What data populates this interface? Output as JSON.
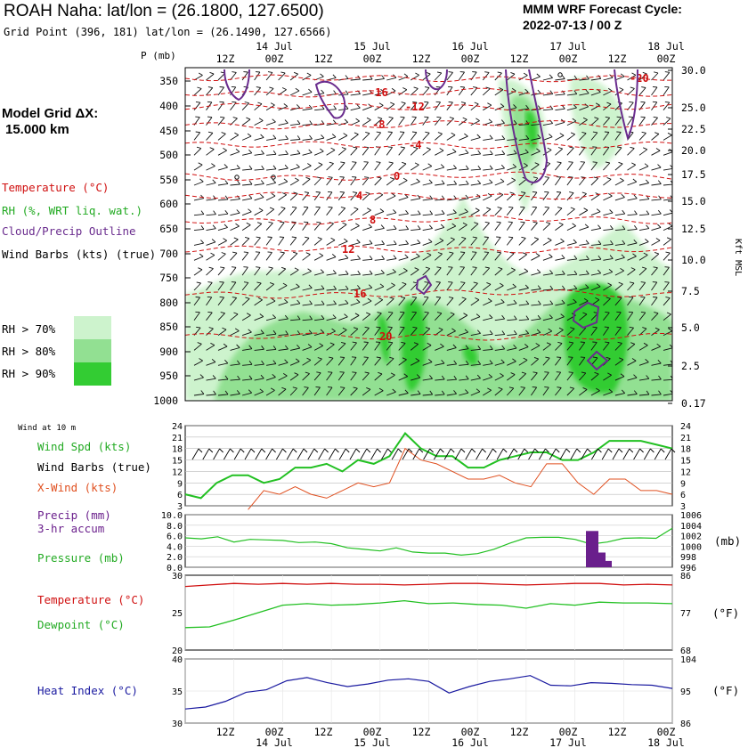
{
  "header": {
    "station_title": "ROAH Naha:  lat/lon = (26.1800, 127.6500)",
    "grid_point": "Grid Point (396, 181) lat/lon = (26.1490, 127.6566)",
    "cycle_line1": "MMM WRF Forecast Cycle:",
    "cycle_line2": "2022-07-13 / 00  Z",
    "model_grid_line1": "Model Grid ΔX:",
    "model_grid_line2": "15.000 km"
  },
  "legend": {
    "temperature": "Temperature (°C)",
    "rh": "RH (%, WRT liq. wat.)",
    "cloud": "Cloud/Precip Outline",
    "wind": "Wind Barbs (kts) (true)",
    "rh70": "RH > 70%",
    "rh80": "RH > 80%",
    "rh90": "RH > 90%"
  },
  "colors": {
    "temperature": "#d01010",
    "rh": "#22c022",
    "cloud": "#6a2c8e",
    "rh70": "#cdf3cd",
    "rh80": "#92e092",
    "rh90": "#33cc33",
    "xwind": "#e05020",
    "precip": "#6a1f8c",
    "heat": "#1a1aa0"
  },
  "time_axis": {
    "ticks": [
      "12Z",
      "00Z",
      "12Z",
      "00Z",
      "12Z",
      "00Z",
      "12Z",
      "00Z",
      "12Z",
      "00Z"
    ],
    "dates": [
      "14 Jul",
      "15 Jul",
      "16 Jul",
      "17 Jul",
      "18 Jul"
    ]
  },
  "sections": {
    "wind10": "Wind at 10 m",
    "wind_spd": "Wind Spd (kts)",
    "wind_barbs": "Wind Barbs (true)",
    "xwind": "X-Wind (kts)",
    "precip1": "Precip (mm)",
    "precip2": "3-hr accum",
    "pressure": "Pressure (mb)",
    "mb": "(mb)",
    "temp": "Temperature (°C)",
    "dew": "Dewpoint (°C)",
    "degF": "(°F)",
    "heat": "Heat Index (°C)",
    "degF2": "(°F)"
  },
  "chart_data": [
    {
      "type": "heatmap",
      "subtype": "time-height cross section",
      "left_axis_label": "P (mb)",
      "right_axis_label": "Kft MSL",
      "pressure_ticks": [
        "350",
        "400",
        "450",
        "500",
        "550",
        "600",
        "650",
        "700",
        "750",
        "800",
        "850",
        "900",
        "950",
        "1000"
      ],
      "height_ticks": [
        "30.0",
        "25.0",
        "22.5",
        "20.0",
        "17.5",
        "15.0",
        "12.5",
        "10.0",
        "7.5",
        "5.0",
        "2.5",
        "0.17"
      ],
      "temperature_contour_labels": [
        "-20",
        "-16",
        "-12",
        "-8",
        "-4",
        "0",
        "4",
        "8",
        "12",
        "16",
        "20"
      ],
      "x": [
        "07-13 06Z",
        "07-13 12Z",
        "07-13 18Z",
        "07-14 00Z",
        "07-14 06Z",
        "07-14 12Z",
        "07-14 18Z",
        "07-15 00Z",
        "07-15 06Z",
        "07-15 12Z",
        "07-15 18Z",
        "07-16 00Z",
        "07-16 06Z",
        "07-16 12Z",
        "07-16 18Z",
        "07-17 00Z",
        "07-17 06Z",
        "07-17 12Z",
        "07-17 18Z",
        "07-18 00Z"
      ],
      "series": [
        {
          "name": "Temperature",
          "unit": "°C"
        },
        {
          "name": "RH",
          "unit": "%",
          "levels": [
            70,
            80,
            90
          ]
        },
        {
          "name": "Cloud/Precip Outline"
        },
        {
          "name": "Wind Barbs",
          "unit": "kts"
        }
      ]
    },
    {
      "type": "line",
      "title": "Wind at 10 m",
      "ylim": [
        3,
        24
      ],
      "yticks": [
        "24",
        "21",
        "18",
        "15",
        "12",
        "9",
        "6",
        "3"
      ],
      "series": [
        {
          "name": "Wind Spd (kts)",
          "color": "#22c022",
          "values": [
            6,
            5,
            9,
            11,
            11,
            9,
            10,
            13,
            13,
            14,
            12,
            15,
            14,
            16,
            22,
            18,
            16,
            16,
            13,
            13,
            15,
            16,
            17,
            17,
            15,
            15,
            17,
            20,
            20,
            20,
            19,
            18
          ]
        },
        {
          "name": "X-Wind (kts)",
          "color": "#e05020",
          "values": [
            null,
            null,
            null,
            null,
            2,
            7,
            6,
            8,
            6,
            5,
            7,
            9,
            8,
            9,
            18,
            15,
            14,
            12,
            10,
            10,
            11,
            9,
            8,
            14,
            14,
            9,
            6,
            10,
            10,
            7,
            7,
            6
          ]
        }
      ]
    },
    {
      "type": "line",
      "title": "Pressure (mb)",
      "left_ticks": [
        "10.0",
        "8.0",
        "6.0",
        "4.0",
        "2.0",
        "0.0"
      ],
      "right_ticks": [
        "1006",
        "1004",
        "1002",
        "1000",
        "998",
        "996"
      ],
      "series": [
        {
          "name": "Pressure (mb)",
          "color": "#22c022",
          "values": [
            1001.6,
            1001.4,
            1001.8,
            1000.8,
            1001.3,
            1001.2,
            1001.1,
            1000.7,
            1000.8,
            1000.5,
            999.7,
            999.4,
            999.1,
            999.7,
            998.9,
            998.7,
            998.7,
            998.3,
            998.6,
            999.4,
            1000.6,
            1001.6,
            1001.7,
            1001.7,
            1001.3,
            1000.4,
            1000.8,
            1001.5,
            1001.6,
            1001.5,
            1003.4
          ]
        }
      ],
      "bars": {
        "name": "Precip (mm) 3-hr accum",
        "color": "#6a1f8c",
        "values": [
          {
            "t": "07-17 03Z",
            "value": 6.9
          },
          {
            "t": "07-17 06Z",
            "value": 2.8
          },
          {
            "t": "07-17 06Z b",
            "value": 1.2
          }
        ]
      }
    },
    {
      "type": "line",
      "title": "Temperature / Dewpoint",
      "left_ticks": [
        "30",
        "25",
        "20"
      ],
      "right_ticks": [
        "86",
        "77",
        "68"
      ],
      "series": [
        {
          "name": "Temperature (°C)",
          "color": "#d01010",
          "values": [
            28.5,
            28.7,
            28.9,
            28.8,
            28.9,
            28.8,
            28.9,
            28.8,
            28.8,
            28.7,
            28.8,
            28.9,
            28.9,
            28.8,
            28.7,
            28.8,
            28.9,
            28.9,
            28.7,
            28.8,
            28.7
          ]
        },
        {
          "name": "Dewpoint (°C)",
          "color": "#22c022",
          "values": [
            23.0,
            23.1,
            24.0,
            25.0,
            26.0,
            26.2,
            26.0,
            26.1,
            26.3,
            26.6,
            26.2,
            26.3,
            26.1,
            26.0,
            25.6,
            26.2,
            26.0,
            26.4,
            26.3,
            26.3,
            26.2
          ]
        }
      ]
    },
    {
      "type": "line",
      "title": "Heat Index (°C)",
      "left_ticks": [
        "40",
        "35",
        "30"
      ],
      "right_ticks": [
        "104",
        "95",
        "86"
      ],
      "series": [
        {
          "name": "Heat Index (°C)",
          "color": "#1a1aa0",
          "values": [
            32.2,
            32.5,
            33.4,
            34.8,
            35.2,
            36.6,
            37.1,
            36.3,
            35.7,
            36.1,
            36.7,
            36.9,
            36.5,
            34.7,
            35.7,
            36.5,
            36.9,
            37.4,
            35.9,
            35.8,
            36.3,
            36.2,
            36.0,
            35.9,
            35.4
          ]
        }
      ]
    }
  ]
}
